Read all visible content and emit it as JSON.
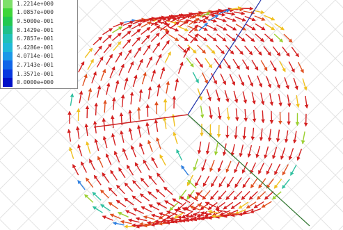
{
  "legend": {
    "labels": [
      "1.2214e+000",
      "1.0857e+000",
      "9.5000e-001",
      "8.1429e-001",
      "6.7857e-001",
      "5.4286e-001",
      "4.0714e-001",
      "2.7143e-001",
      "1.3571e-001",
      "0.0000e+000"
    ]
  }
}
